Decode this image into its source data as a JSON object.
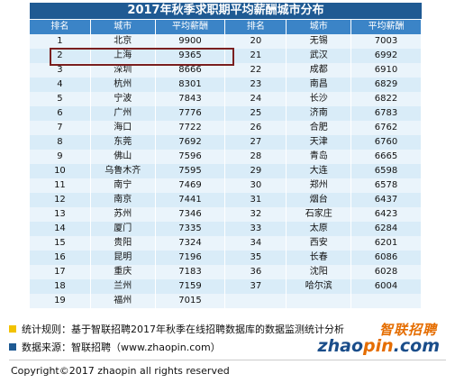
{
  "title": "2017年秋季求职期平均薪酬城市分布",
  "headers": [
    "排名",
    "城市",
    "平均薪酬",
    "排名",
    "城市",
    "平均薪酬"
  ],
  "rows": [
    [
      "1",
      "北京",
      "9900",
      "20",
      "无锡",
      "7003"
    ],
    [
      "2",
      "上海",
      "9365",
      "21",
      "武汉",
      "6992"
    ],
    [
      "3",
      "深圳",
      "8666",
      "22",
      "成都",
      "6910"
    ],
    [
      "4",
      "杭州",
      "8301",
      "23",
      "南昌",
      "6829"
    ],
    [
      "5",
      "宁波",
      "7843",
      "24",
      "长沙",
      "6822"
    ],
    [
      "6",
      "广州",
      "7776",
      "25",
      "济南",
      "6783"
    ],
    [
      "7",
      "海口",
      "7722",
      "26",
      "合肥",
      "6762"
    ],
    [
      "8",
      "东莞",
      "7692",
      "27",
      "天津",
      "6760"
    ],
    [
      "9",
      "佛山",
      "7596",
      "28",
      "青岛",
      "6665"
    ],
    [
      "10",
      "乌鲁木齐",
      "7595",
      "29",
      "大连",
      "6598"
    ],
    [
      "11",
      "南宁",
      "7469",
      "30",
      "郑州",
      "6578"
    ],
    [
      "12",
      "南京",
      "7441",
      "31",
      "烟台",
      "6437"
    ],
    [
      "13",
      "苏州",
      "7346",
      "32",
      "石家庄",
      "6423"
    ],
    [
      "14",
      "厦门",
      "7335",
      "33",
      "太原",
      "6284"
    ],
    [
      "15",
      "贵阳",
      "7324",
      "34",
      "西安",
      "6201"
    ],
    [
      "16",
      "昆明",
      "7196",
      "35",
      "长春",
      "6086"
    ],
    [
      "17",
      "重庆",
      "7183",
      "36",
      "沈阳",
      "6028"
    ],
    [
      "18",
      "兰州",
      "7159",
      "37",
      "哈尔滨",
      "6004"
    ],
    [
      "19",
      "福州",
      "7015",
      "",
      "",
      ""
    ]
  ],
  "highlighted_row": "2",
  "notes": [
    {
      "text": "统计规则：基于智联招聘2017年秋季在线招聘数据库的数据监测统计分析",
      "color": "#f2c200"
    },
    {
      "text": "数据来源：智联招聘（www.zhaopin.com）",
      "color": "#1f5a93"
    }
  ],
  "logo": {
    "cn": "智联招聘",
    "en_left": "zhao",
    "en_mid": "pin",
    "en_right": ".com"
  },
  "copyright": "Copyright©2017 zhaopin all rights reserved"
}
